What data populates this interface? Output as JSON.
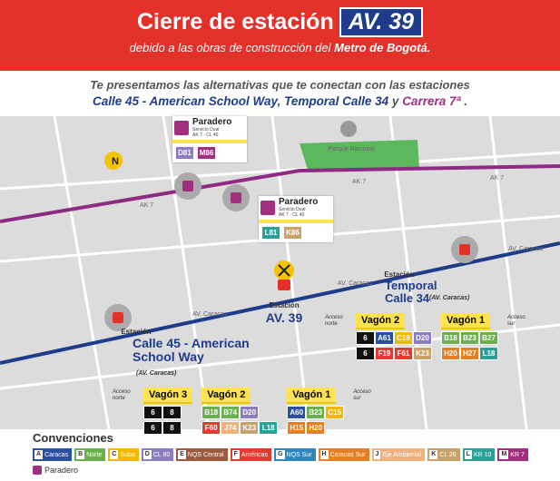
{
  "header": {
    "title": "Cierre de estación",
    "station_badge": "AV. 39",
    "subtitle": "debido a las obras de construcción del",
    "subtitle_emphasis": "Metro de Bogotá."
  },
  "intro": {
    "line1": "Te presentamos las alternativas que te conectan con las estaciones",
    "stations": [
      "Calle 45 - American School Way",
      "Temporal Calle 34",
      "Carrera 7ª"
    ],
    "separators": [
      ",",
      "y",
      "."
    ]
  },
  "map": {
    "north": "N",
    "park": "Parque Nacional",
    "ak7": [
      "AK 7",
      "AK 7",
      "AK 7"
    ],
    "caracas": [
      "AV. Caracas",
      "AV. Caracas",
      "AV. Caracas"
    ]
  },
  "paraderos": [
    {
      "title": "Paradero",
      "service": "Servicio Dual",
      "address": "AK 7 - CL 40",
      "routes": [
        "D81",
        "M86"
      ]
    },
    {
      "title": "Paradero",
      "service": "Servicio Dual",
      "address": "AK 7 - CL 40",
      "routes": [
        "L81",
        "K86"
      ]
    }
  ],
  "stations": {
    "closed": {
      "label": "Estación",
      "name": "AV. 39"
    },
    "temporal": {
      "label": "Estación",
      "name": "Temporal Calle 34",
      "road": "(AV. Caracas)",
      "access_north": "Acceso norte",
      "access_south": "Acceso sur",
      "wagons": [
        {
          "name": "Vagón 2",
          "rows": [
            [
              "6",
              "A61",
              "C19",
              "D20"
            ],
            [
              "6",
              "F19",
              "F61",
              "K23"
            ]
          ]
        },
        {
          "name": "Vagón 1",
          "rows": [
            [
              "B18",
              "B23",
              "B27"
            ],
            [
              "H20",
              "H27",
              "L18"
            ]
          ]
        }
      ]
    },
    "calle45": {
      "label": "Estación",
      "name": "Calle 45 - American School Way",
      "road": "(AV. Caracas)",
      "access_north": "Acceso norte",
      "access_south": "Acceso sur",
      "wagons": [
        {
          "name": "Vagón 3",
          "rows": [
            [
              "6",
              "8"
            ],
            [
              "6",
              "8"
            ]
          ]
        },
        {
          "name": "Vagón 2",
          "rows": [
            [
              "B18",
              "B74",
              "D20"
            ],
            [
              "F60",
              "J74",
              "K23",
              "L18"
            ]
          ]
        },
        {
          "name": "Vagón 1",
          "rows": [
            [
              "A60",
              "B23",
              "C15"
            ],
            [
              "H15",
              "H20"
            ]
          ]
        }
      ]
    }
  },
  "legend": {
    "title": "Convenciones",
    "items": [
      {
        "letter": "A",
        "name": "Caracas",
        "color": "#2b4fa2"
      },
      {
        "letter": "B",
        "name": "Norte",
        "color": "#6ab04c"
      },
      {
        "letter": "C",
        "name": "Suba",
        "color": "#f5b800"
      },
      {
        "letter": "D",
        "name": "CL 80",
        "color": "#8e7cc3"
      },
      {
        "letter": "E",
        "name": "NQS Central",
        "color": "#9c5a3c"
      },
      {
        "letter": "F",
        "name": "Américas",
        "color": "#e03c31"
      },
      {
        "letter": "G",
        "name": "NQS Sur",
        "color": "#2e86c1"
      },
      {
        "letter": "H",
        "name": "Caracas Sur",
        "color": "#e67e22"
      },
      {
        "letter": "J",
        "name": "Eje Ambiental",
        "color": "#f0b27a"
      },
      {
        "letter": "K",
        "name": "CL 26",
        "color": "#c8a26a"
      },
      {
        "letter": "L",
        "name": "KR 10",
        "color": "#2aa198"
      },
      {
        "letter": "M",
        "name": "KR 7",
        "color": "#a0307f"
      }
    ],
    "paradero": "Paradero"
  }
}
